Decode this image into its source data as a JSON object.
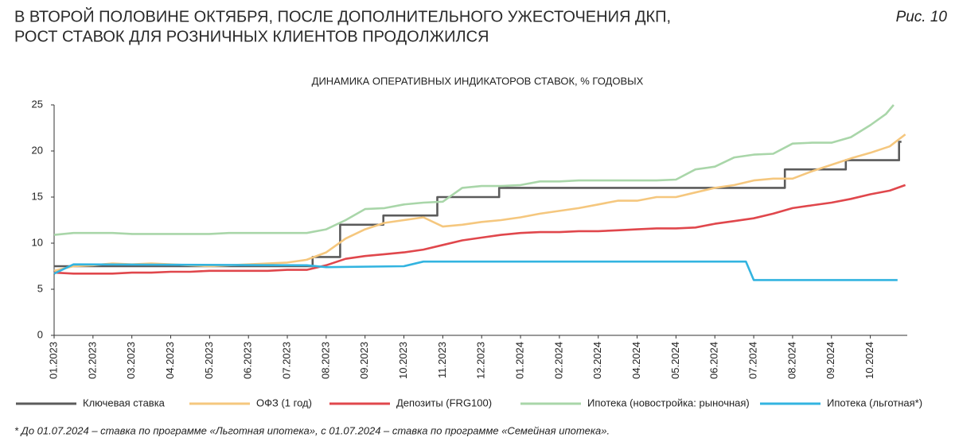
{
  "chart_data": {
    "type": "line",
    "title": "В ВТОРОЙ ПОЛОВИНЕ ОКТЯБРЯ, ПОСЛЕ ДОПОЛНИТЕЛЬНОГО УЖЕСТОЧЕНИЯ ДКП,",
    "title_line2": "РОСТ СТАВОК ДЛЯ РОЗНИЧНЫХ КЛИЕНТОВ ПРОДОЛЖИЛСЯ",
    "figure_label": "Рис. 10",
    "subtitle": "ДИНАМИКА ОПЕРАТИВНЫХ ИНДИКАТОРОВ СТАВОК, % ГОДОВЫХ",
    "footnote": "* До 01.07.2024 – ставка по программе «Льготная ипотека», с 01.07.2024 – ставка по программе «Семейная ипотека».",
    "xlim": [
      0,
      21.95
    ],
    "xticks": [
      {
        "value": 0,
        "label": "01.2023"
      },
      {
        "value": 1,
        "label": "02.2023"
      },
      {
        "value": 2,
        "label": "03.2023"
      },
      {
        "value": 3,
        "label": "04.2023"
      },
      {
        "value": 4,
        "label": "05.2023"
      },
      {
        "value": 5,
        "label": "06.2023"
      },
      {
        "value": 6,
        "label": "07.2023"
      },
      {
        "value": 7,
        "label": "08.2023"
      },
      {
        "value": 8,
        "label": "09.2023"
      },
      {
        "value": 9,
        "label": "10.2023"
      },
      {
        "value": 10,
        "label": "11.2023"
      },
      {
        "value": 11,
        "label": "12.2023"
      },
      {
        "value": 12,
        "label": "01.2024"
      },
      {
        "value": 13,
        "label": "02.2024"
      },
      {
        "value": 14,
        "label": "03.2024"
      },
      {
        "value": 15,
        "label": "04.2024"
      },
      {
        "value": 16,
        "label": "05.2024"
      },
      {
        "value": 17,
        "label": "06.2024"
      },
      {
        "value": 18,
        "label": "07.2024"
      },
      {
        "value": 19,
        "label": "08.2024"
      },
      {
        "value": 20,
        "label": "09.2024"
      },
      {
        "value": 21,
        "label": "10.2024"
      }
    ],
    "ylim": [
      0,
      25
    ],
    "yticks": [
      0,
      5,
      10,
      15,
      20,
      25
    ],
    "grid": false,
    "legend": "bottom",
    "series": [
      {
        "name": "Ключевая ставка",
        "color": "#5b5b5b",
        "x": [
          0,
          6.65,
          6.65,
          7.36,
          7.36,
          8.47,
          8.47,
          9.86,
          9.86,
          11.45,
          11.45,
          18.8,
          18.8,
          20.37,
          20.37,
          21.74,
          21.74,
          21.8
        ],
        "values": [
          7.5,
          7.5,
          8.5,
          8.5,
          12,
          12,
          13,
          13,
          15,
          15,
          16,
          16,
          18,
          18,
          19,
          19,
          21,
          21
        ]
      },
      {
        "name": "ОФЗ (1 год)",
        "color": "#f5c77e",
        "x": [
          0,
          0.5,
          1,
          1.5,
          2,
          2.5,
          3,
          3.5,
          4,
          4.5,
          5,
          5.5,
          6,
          6.5,
          7,
          7.5,
          8,
          8.5,
          9,
          9.5,
          10,
          10.5,
          11,
          11.5,
          12,
          12.5,
          13,
          13.5,
          14,
          14.5,
          15,
          15.5,
          16,
          16.5,
          17,
          17.5,
          18,
          18.5,
          19,
          19.5,
          20,
          20.5,
          21,
          21.5,
          21.9
        ],
        "values": [
          7.0,
          7.5,
          7.6,
          7.8,
          7.7,
          7.8,
          7.7,
          7.6,
          7.5,
          7.6,
          7.7,
          7.8,
          7.9,
          8.2,
          9.0,
          10.5,
          11.5,
          12.2,
          12.5,
          12.8,
          11.8,
          12.0,
          12.3,
          12.5,
          12.8,
          13.2,
          13.5,
          13.8,
          14.2,
          14.6,
          14.6,
          15.0,
          15.0,
          15.5,
          16.0,
          16.3,
          16.8,
          17.0,
          17.0,
          17.8,
          18.5,
          19.2,
          19.8,
          20.5,
          21.8
        ]
      },
      {
        "name": "Депозиты (FRG100)",
        "color": "#e0474c",
        "x": [
          0,
          0.5,
          1,
          1.5,
          2,
          2.5,
          3,
          3.5,
          4,
          4.5,
          5,
          5.5,
          6,
          6.5,
          7,
          7.5,
          8,
          8.5,
          9,
          9.5,
          10,
          10.5,
          11,
          11.5,
          12,
          12.5,
          13,
          13.5,
          14,
          14.5,
          15,
          15.5,
          16,
          16.5,
          17,
          17.5,
          18,
          18.5,
          19,
          19.5,
          20,
          20.5,
          21,
          21.5,
          21.9
        ],
        "values": [
          6.8,
          6.7,
          6.7,
          6.7,
          6.8,
          6.8,
          6.9,
          6.9,
          7.0,
          7.0,
          7.0,
          7.0,
          7.1,
          7.1,
          7.6,
          8.3,
          8.6,
          8.8,
          9.0,
          9.3,
          9.8,
          10.3,
          10.6,
          10.9,
          11.1,
          11.2,
          11.2,
          11.3,
          11.3,
          11.4,
          11.5,
          11.6,
          11.6,
          11.7,
          12.1,
          12.4,
          12.7,
          13.2,
          13.8,
          14.1,
          14.4,
          14.8,
          15.3,
          15.7,
          16.3
        ]
      },
      {
        "name": "Ипотека (новостройка: рыночная)",
        "color": "#a9d6a9",
        "x": [
          0,
          0.5,
          1,
          1.5,
          2,
          2.5,
          3,
          3.5,
          4,
          4.5,
          5,
          5.5,
          6,
          6.5,
          7,
          7.5,
          8,
          8.5,
          9,
          9.5,
          10,
          10.5,
          11,
          11.5,
          12,
          12.5,
          13,
          13.5,
          14,
          14.5,
          15,
          15.5,
          16,
          16.5,
          17,
          17.5,
          18,
          18.5,
          19,
          19.5,
          20,
          20.5,
          21,
          21.4,
          21.6
        ],
        "values": [
          10.9,
          11.1,
          11.1,
          11.1,
          11.0,
          11.0,
          11.0,
          11.0,
          11.0,
          11.1,
          11.1,
          11.1,
          11.1,
          11.1,
          11.5,
          12.5,
          13.7,
          13.8,
          14.2,
          14.4,
          14.5,
          16.0,
          16.2,
          16.2,
          16.3,
          16.7,
          16.7,
          16.8,
          16.8,
          16.8,
          16.8,
          16.8,
          16.9,
          18.0,
          18.3,
          19.3,
          19.6,
          19.7,
          20.8,
          20.9,
          20.9,
          21.5,
          22.8,
          24.0,
          25
        ]
      },
      {
        "name": "Ипотека (льготная*)",
        "color": "#33b4e0",
        "x": [
          0,
          0.5,
          6.5,
          7,
          9,
          9.5,
          17.8,
          18.0,
          21.7
        ],
        "values": [
          6.7,
          7.7,
          7.6,
          7.4,
          7.5,
          8.0,
          8.0,
          6.0,
          6.0
        ]
      }
    ]
  }
}
